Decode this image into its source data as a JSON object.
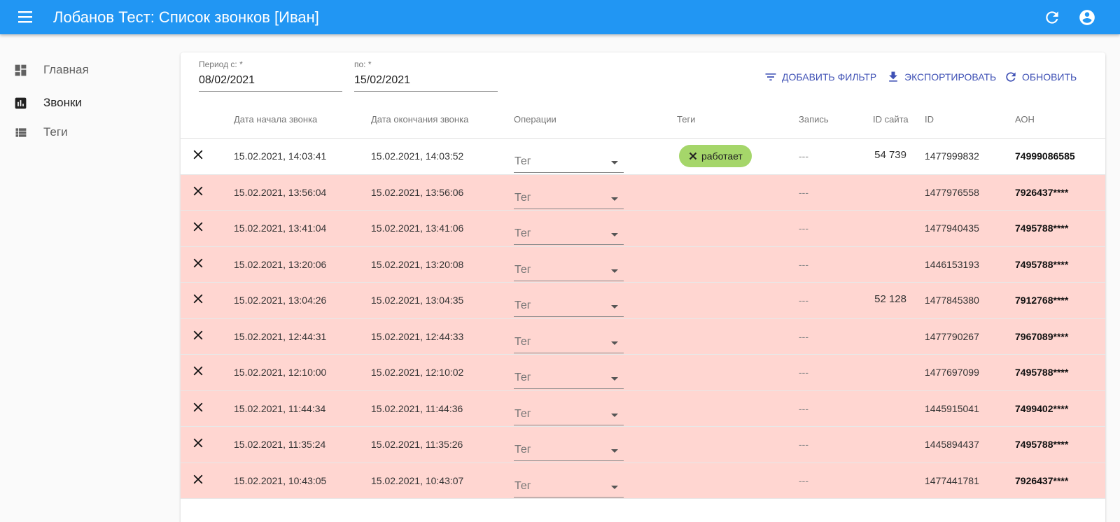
{
  "appbar": {
    "title": "Лобанов Тест: Список звонков [Иван]",
    "color": "#2196f3"
  },
  "sidebar": {
    "items": [
      {
        "label": "Главная",
        "icon": "dashboard-icon"
      },
      {
        "label": "Звонки",
        "icon": "bar-chart-icon"
      },
      {
        "label": "Теги",
        "icon": "list-icon"
      }
    ]
  },
  "filters": {
    "from_label": "Период с: *",
    "from_value": "08/02/2021",
    "to_label": "по: *",
    "to_value": "15/02/2021"
  },
  "toolbar": {
    "add_filter": "ДОБАВИТЬ ФИЛЬТР",
    "export": "ЭКСПОРТИРОВАТЬ",
    "refresh": "ОБНОВИТЬ",
    "accent": "#3f51b5"
  },
  "table": {
    "columns": [
      "Дата начала звонка",
      "Дата окончания звонка",
      "Операции",
      "Теги",
      "Запись",
      "ID сайта",
      "ID",
      "АОН"
    ],
    "error_row_color": "#ffd6d1",
    "rows": [
      {
        "start": "15.02.2021, 14:03:41",
        "end": "15.02.2021, 14:03:52",
        "operation": "Тег",
        "tag": "работает",
        "record": "---",
        "site_id": "54 739",
        "id": "1477999832",
        "aon": "74999086585",
        "error": false
      },
      {
        "start": "15.02.2021, 13:56:04",
        "end": "15.02.2021, 13:56:06",
        "operation": "Тег",
        "tag": "",
        "record": "---",
        "site_id": "",
        "id": "1477976558",
        "aon": "7926437****",
        "error": true
      },
      {
        "start": "15.02.2021, 13:41:04",
        "end": "15.02.2021, 13:41:06",
        "operation": "Тег",
        "tag": "",
        "record": "---",
        "site_id": "",
        "id": "1477940435",
        "aon": "7495788****",
        "error": true
      },
      {
        "start": "15.02.2021, 13:20:06",
        "end": "15.02.2021, 13:20:08",
        "operation": "Тег",
        "tag": "",
        "record": "---",
        "site_id": "",
        "id": "1446153193",
        "aon": "7495788****",
        "error": true
      },
      {
        "start": "15.02.2021, 13:04:26",
        "end": "15.02.2021, 13:04:35",
        "operation": "Тег",
        "tag": "",
        "record": "---",
        "site_id": "52 128",
        "id": "1477845380",
        "aon": "7912768****",
        "error": true
      },
      {
        "start": "15.02.2021, 12:44:31",
        "end": "15.02.2021, 12:44:33",
        "operation": "Тег",
        "tag": "",
        "record": "---",
        "site_id": "",
        "id": "1477790267",
        "aon": "7967089****",
        "error": true
      },
      {
        "start": "15.02.2021, 12:10:00",
        "end": "15.02.2021, 12:10:02",
        "operation": "Тег",
        "tag": "",
        "record": "---",
        "site_id": "",
        "id": "1477697099",
        "aon": "7495788****",
        "error": true
      },
      {
        "start": "15.02.2021, 11:44:34",
        "end": "15.02.2021, 11:44:36",
        "operation": "Тег",
        "tag": "",
        "record": "---",
        "site_id": "",
        "id": "1445915041",
        "aon": "7499402****",
        "error": true
      },
      {
        "start": "15.02.2021, 11:35:24",
        "end": "15.02.2021, 11:35:26",
        "operation": "Тег",
        "tag": "",
        "record": "---",
        "site_id": "",
        "id": "1445894437",
        "aon": "7495788****",
        "error": true
      },
      {
        "start": "15.02.2021, 10:43:05",
        "end": "15.02.2021, 10:43:07",
        "operation": "Тег",
        "tag": "",
        "record": "---",
        "site_id": "",
        "id": "1477441781",
        "aon": "7926437****",
        "error": true
      }
    ]
  }
}
